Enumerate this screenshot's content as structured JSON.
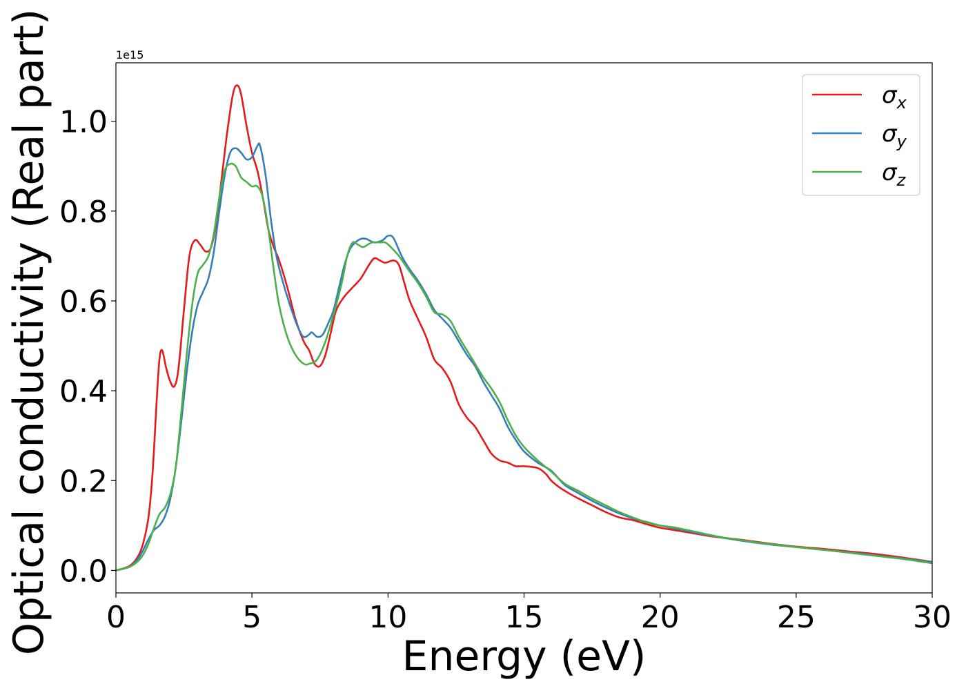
{
  "chart_data": {
    "type": "line",
    "title": "",
    "xlabel": "Energy (eV)",
    "ylabel": "Optical conductivity (Real part)",
    "y_offset_label": "1e15",
    "xlim": [
      0,
      30
    ],
    "ylim": [
      -0.05,
      1.13
    ],
    "x_ticks": [
      0,
      5,
      10,
      15,
      20,
      25,
      30
    ],
    "x_tick_labels": [
      "0",
      "5",
      "10",
      "15",
      "20",
      "25",
      "30"
    ],
    "y_ticks": [
      0.0,
      0.2,
      0.4,
      0.6,
      0.8,
      1.0
    ],
    "y_tick_labels": [
      "0.0",
      "0.2",
      "0.4",
      "0.6",
      "0.8",
      "1.0"
    ],
    "grid": false,
    "legend_position": "top-right",
    "series": [
      {
        "name": "σx",
        "legend_base": "σ",
        "legend_sub": "x",
        "color": "#e41a1c",
        "points": [
          [
            0,
            0.0
          ],
          [
            0.5,
            0.01
          ],
          [
            0.8,
            0.03
          ],
          [
            1.0,
            0.06
          ],
          [
            1.2,
            0.12
          ],
          [
            1.35,
            0.22
          ],
          [
            1.5,
            0.38
          ],
          [
            1.6,
            0.47
          ],
          [
            1.7,
            0.49
          ],
          [
            1.85,
            0.45
          ],
          [
            2.0,
            0.42
          ],
          [
            2.15,
            0.41
          ],
          [
            2.3,
            0.45
          ],
          [
            2.5,
            0.58
          ],
          [
            2.7,
            0.7
          ],
          [
            2.9,
            0.735
          ],
          [
            3.1,
            0.725
          ],
          [
            3.3,
            0.71
          ],
          [
            3.5,
            0.72
          ],
          [
            3.7,
            0.78
          ],
          [
            3.9,
            0.88
          ],
          [
            4.1,
            0.98
          ],
          [
            4.3,
            1.06
          ],
          [
            4.45,
            1.08
          ],
          [
            4.6,
            1.06
          ],
          [
            4.8,
            0.99
          ],
          [
            5.0,
            0.93
          ],
          [
            5.2,
            0.89
          ],
          [
            5.4,
            0.83
          ],
          [
            5.6,
            0.76
          ],
          [
            5.8,
            0.72
          ],
          [
            6.0,
            0.69
          ],
          [
            6.3,
            0.63
          ],
          [
            6.6,
            0.56
          ],
          [
            6.9,
            0.51
          ],
          [
            7.1,
            0.49
          ],
          [
            7.3,
            0.46
          ],
          [
            7.5,
            0.455
          ],
          [
            7.7,
            0.48
          ],
          [
            7.9,
            0.53
          ],
          [
            8.1,
            0.58
          ],
          [
            8.4,
            0.61
          ],
          [
            8.7,
            0.63
          ],
          [
            9.0,
            0.65
          ],
          [
            9.3,
            0.68
          ],
          [
            9.5,
            0.695
          ],
          [
            9.7,
            0.69
          ],
          [
            9.9,
            0.685
          ],
          [
            10.2,
            0.69
          ],
          [
            10.4,
            0.68
          ],
          [
            10.6,
            0.64
          ],
          [
            10.8,
            0.6
          ],
          [
            11.1,
            0.56
          ],
          [
            11.4,
            0.52
          ],
          [
            11.7,
            0.47
          ],
          [
            12.0,
            0.45
          ],
          [
            12.3,
            0.42
          ],
          [
            12.6,
            0.37
          ],
          [
            12.9,
            0.34
          ],
          [
            13.2,
            0.32
          ],
          [
            13.5,
            0.29
          ],
          [
            13.8,
            0.26
          ],
          [
            14.1,
            0.245
          ],
          [
            14.4,
            0.24
          ],
          [
            14.7,
            0.232
          ],
          [
            15.0,
            0.232
          ],
          [
            15.5,
            0.228
          ],
          [
            15.8,
            0.215
          ],
          [
            16.0,
            0.2
          ],
          [
            16.3,
            0.185
          ],
          [
            16.7,
            0.17
          ],
          [
            17.0,
            0.16
          ],
          [
            17.5,
            0.145
          ],
          [
            18.0,
            0.13
          ],
          [
            18.5,
            0.118
          ],
          [
            19.0,
            0.112
          ],
          [
            19.5,
            0.103
          ],
          [
            20.0,
            0.095
          ],
          [
            20.5,
            0.09
          ],
          [
            21.0,
            0.085
          ],
          [
            22.0,
            0.075
          ],
          [
            23.0,
            0.068
          ],
          [
            24.0,
            0.06
          ],
          [
            25.0,
            0.053
          ],
          [
            26.0,
            0.048
          ],
          [
            27.0,
            0.042
          ],
          [
            28.0,
            0.036
          ],
          [
            29.0,
            0.028
          ],
          [
            30.0,
            0.019
          ]
        ]
      },
      {
        "name": "σy",
        "legend_base": "σ",
        "legend_sub": "y",
        "color": "#377eb8",
        "points": [
          [
            0,
            0.0
          ],
          [
            0.5,
            0.008
          ],
          [
            0.8,
            0.025
          ],
          [
            1.0,
            0.045
          ],
          [
            1.2,
            0.07
          ],
          [
            1.4,
            0.09
          ],
          [
            1.6,
            0.1
          ],
          [
            1.8,
            0.12
          ],
          [
            2.0,
            0.16
          ],
          [
            2.2,
            0.23
          ],
          [
            2.4,
            0.33
          ],
          [
            2.6,
            0.44
          ],
          [
            2.8,
            0.53
          ],
          [
            3.0,
            0.59
          ],
          [
            3.2,
            0.62
          ],
          [
            3.4,
            0.65
          ],
          [
            3.6,
            0.71
          ],
          [
            3.8,
            0.8
          ],
          [
            4.0,
            0.88
          ],
          [
            4.2,
            0.93
          ],
          [
            4.4,
            0.94
          ],
          [
            4.6,
            0.93
          ],
          [
            4.8,
            0.915
          ],
          [
            5.0,
            0.92
          ],
          [
            5.2,
            0.945
          ],
          [
            5.3,
            0.945
          ],
          [
            5.5,
            0.88
          ],
          [
            5.7,
            0.78
          ],
          [
            5.9,
            0.7
          ],
          [
            6.1,
            0.65
          ],
          [
            6.4,
            0.59
          ],
          [
            6.7,
            0.54
          ],
          [
            6.9,
            0.52
          ],
          [
            7.1,
            0.525
          ],
          [
            7.2,
            0.53
          ],
          [
            7.4,
            0.52
          ],
          [
            7.6,
            0.525
          ],
          [
            7.8,
            0.55
          ],
          [
            8.0,
            0.58
          ],
          [
            8.2,
            0.63
          ],
          [
            8.4,
            0.68
          ],
          [
            8.6,
            0.715
          ],
          [
            8.8,
            0.73
          ],
          [
            9.0,
            0.738
          ],
          [
            9.2,
            0.738
          ],
          [
            9.5,
            0.73
          ],
          [
            9.8,
            0.735
          ],
          [
            10.0,
            0.745
          ],
          [
            10.2,
            0.74
          ],
          [
            10.5,
            0.7
          ],
          [
            10.8,
            0.67
          ],
          [
            11.1,
            0.645
          ],
          [
            11.4,
            0.615
          ],
          [
            11.7,
            0.58
          ],
          [
            12.0,
            0.56
          ],
          [
            12.3,
            0.54
          ],
          [
            12.6,
            0.51
          ],
          [
            12.9,
            0.48
          ],
          [
            13.2,
            0.455
          ],
          [
            13.5,
            0.42
          ],
          [
            13.8,
            0.39
          ],
          [
            14.1,
            0.36
          ],
          [
            14.4,
            0.32
          ],
          [
            14.7,
            0.29
          ],
          [
            15.0,
            0.265
          ],
          [
            15.5,
            0.24
          ],
          [
            16.0,
            0.222
          ],
          [
            16.5,
            0.19
          ],
          [
            17.0,
            0.172
          ],
          [
            17.5,
            0.155
          ],
          [
            18.0,
            0.14
          ],
          [
            18.5,
            0.127
          ],
          [
            19.0,
            0.116
          ],
          [
            19.5,
            0.108
          ],
          [
            20.0,
            0.1
          ],
          [
            20.5,
            0.094
          ],
          [
            21.0,
            0.088
          ],
          [
            22.0,
            0.076
          ],
          [
            23.0,
            0.066
          ],
          [
            24.0,
            0.058
          ],
          [
            25.0,
            0.052
          ],
          [
            26.0,
            0.046
          ],
          [
            27.0,
            0.04
          ],
          [
            28.0,
            0.033
          ],
          [
            29.0,
            0.026
          ],
          [
            30.0,
            0.018
          ]
        ]
      },
      {
        "name": "σz",
        "legend_base": "σ",
        "legend_sub": "z",
        "color": "#4daf4a",
        "points": [
          [
            0,
            0.0
          ],
          [
            0.5,
            0.008
          ],
          [
            0.8,
            0.02
          ],
          [
            1.0,
            0.035
          ],
          [
            1.2,
            0.06
          ],
          [
            1.4,
            0.095
          ],
          [
            1.6,
            0.125
          ],
          [
            1.8,
            0.14
          ],
          [
            2.0,
            0.17
          ],
          [
            2.2,
            0.23
          ],
          [
            2.4,
            0.35
          ],
          [
            2.6,
            0.48
          ],
          [
            2.8,
            0.59
          ],
          [
            3.0,
            0.66
          ],
          [
            3.2,
            0.68
          ],
          [
            3.4,
            0.7
          ],
          [
            3.6,
            0.75
          ],
          [
            3.8,
            0.83
          ],
          [
            4.0,
            0.89
          ],
          [
            4.2,
            0.905
          ],
          [
            4.4,
            0.9
          ],
          [
            4.6,
            0.875
          ],
          [
            4.8,
            0.865
          ],
          [
            5.0,
            0.855
          ],
          [
            5.2,
            0.855
          ],
          [
            5.4,
            0.83
          ],
          [
            5.6,
            0.76
          ],
          [
            5.8,
            0.67
          ],
          [
            6.0,
            0.59
          ],
          [
            6.3,
            0.52
          ],
          [
            6.6,
            0.48
          ],
          [
            6.9,
            0.46
          ],
          [
            7.1,
            0.46
          ],
          [
            7.4,
            0.47
          ],
          [
            7.7,
            0.51
          ],
          [
            8.0,
            0.57
          ],
          [
            8.3,
            0.64
          ],
          [
            8.5,
            0.7
          ],
          [
            8.7,
            0.73
          ],
          [
            8.9,
            0.725
          ],
          [
            9.1,
            0.72
          ],
          [
            9.4,
            0.73
          ],
          [
            9.7,
            0.73
          ],
          [
            9.9,
            0.73
          ],
          [
            10.1,
            0.72
          ],
          [
            10.4,
            0.7
          ],
          [
            10.8,
            0.665
          ],
          [
            11.1,
            0.64
          ],
          [
            11.4,
            0.61
          ],
          [
            11.7,
            0.575
          ],
          [
            12.0,
            0.57
          ],
          [
            12.3,
            0.555
          ],
          [
            12.6,
            0.52
          ],
          [
            12.9,
            0.49
          ],
          [
            13.2,
            0.46
          ],
          [
            13.5,
            0.43
          ],
          [
            13.8,
            0.405
          ],
          [
            14.1,
            0.375
          ],
          [
            14.4,
            0.335
          ],
          [
            14.7,
            0.3
          ],
          [
            15.0,
            0.275
          ],
          [
            15.5,
            0.245
          ],
          [
            16.0,
            0.22
          ],
          [
            16.5,
            0.193
          ],
          [
            17.0,
            0.177
          ],
          [
            17.5,
            0.16
          ],
          [
            18.0,
            0.145
          ],
          [
            18.5,
            0.13
          ],
          [
            19.0,
            0.118
          ],
          [
            19.5,
            0.107
          ],
          [
            20.0,
            0.1
          ],
          [
            20.5,
            0.096
          ],
          [
            21.0,
            0.09
          ],
          [
            22.0,
            0.077
          ],
          [
            23.0,
            0.067
          ],
          [
            24.0,
            0.059
          ],
          [
            25.0,
            0.052
          ],
          [
            26.0,
            0.046
          ],
          [
            27.0,
            0.039
          ],
          [
            28.0,
            0.032
          ],
          [
            29.0,
            0.025
          ],
          [
            30.0,
            0.016
          ]
        ]
      }
    ]
  }
}
